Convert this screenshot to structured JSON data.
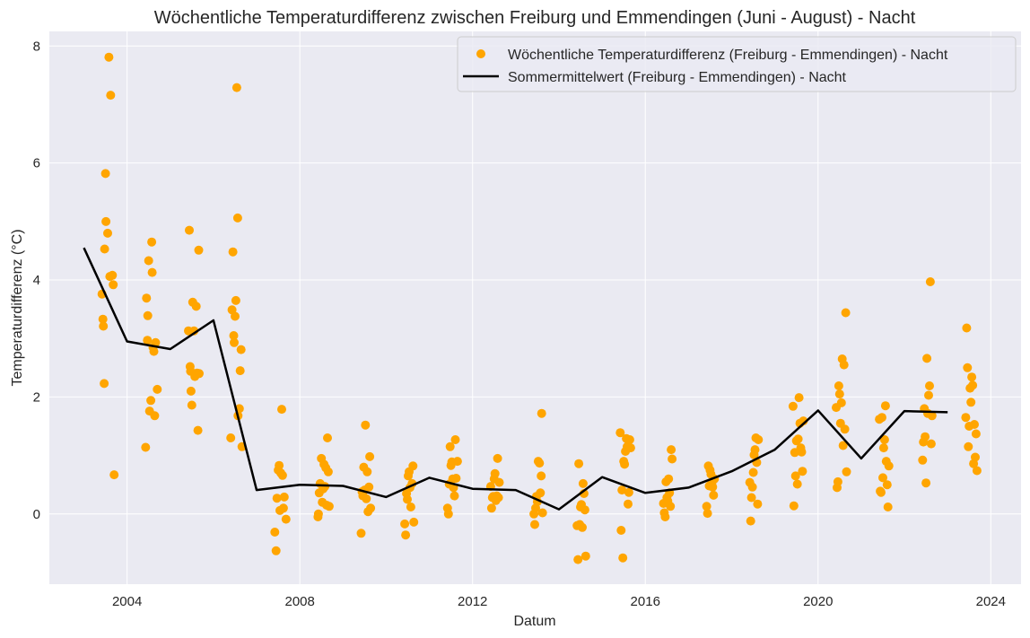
{
  "chart_data": {
    "type": "scatter",
    "title": "Wöchentliche Temperaturdifferenz zwischen Freiburg und Emmendingen (Juni - August) - Nacht",
    "xlabel": "Datum",
    "ylabel": "Temperaturdifferenz (°C)",
    "xlim": [
      2002.2,
      2024.7
    ],
    "ylim": [
      -1.2,
      8.25
    ],
    "x_ticks": [
      2004,
      2008,
      2012,
      2016,
      2020,
      2024
    ],
    "x_tick_labels": [
      "2004",
      "2008",
      "2012",
      "2016",
      "2020",
      "2024"
    ],
    "y_ticks": [
      0,
      2,
      4,
      6,
      8
    ],
    "y_tick_labels": [
      "0",
      "2",
      "4",
      "6",
      "8"
    ],
    "grid": true,
    "legend_position": "top-right",
    "colors": {
      "scatter": "#FFA500",
      "mean_line": "#000000",
      "plot_bg": "#EAEAF2",
      "grid": "#FFFFFF"
    },
    "series": [
      {
        "name": "Wöchentliche Temperaturdifferenz (Freiburg - Emmendingen) - Nacht",
        "kind": "scatter",
        "points": [
          [
            2003.42,
            3.76
          ],
          [
            2003.44,
            3.33
          ],
          [
            2003.45,
            3.21
          ],
          [
            2003.47,
            2.23
          ],
          [
            2003.48,
            4.53
          ],
          [
            2003.5,
            5.82
          ],
          [
            2003.51,
            5.0
          ],
          [
            2003.55,
            4.8
          ],
          [
            2003.58,
            7.81
          ],
          [
            2003.6,
            4.06
          ],
          [
            2003.62,
            7.16
          ],
          [
            2003.66,
            4.08
          ],
          [
            2003.68,
            3.92
          ],
          [
            2003.7,
            0.67
          ],
          [
            2004.43,
            1.14
          ],
          [
            2004.45,
            3.69
          ],
          [
            2004.47,
            2.97
          ],
          [
            2004.48,
            3.39
          ],
          [
            2004.5,
            4.33
          ],
          [
            2004.52,
            1.76
          ],
          [
            2004.55,
            1.94
          ],
          [
            2004.57,
            4.65
          ],
          [
            2004.58,
            4.13
          ],
          [
            2004.6,
            2.85
          ],
          [
            2004.62,
            2.78
          ],
          [
            2004.64,
            1.68
          ],
          [
            2004.66,
            2.93
          ],
          [
            2004.7,
            2.13
          ],
          [
            2005.42,
            3.13
          ],
          [
            2005.44,
            4.85
          ],
          [
            2005.46,
            2.52
          ],
          [
            2005.47,
            2.44
          ],
          [
            2005.48,
            2.1
          ],
          [
            2005.5,
            1.86
          ],
          [
            2005.52,
            3.62
          ],
          [
            2005.55,
            3.13
          ],
          [
            2005.57,
            2.35
          ],
          [
            2005.6,
            3.55
          ],
          [
            2005.62,
            2.41
          ],
          [
            2005.64,
            1.43
          ],
          [
            2005.66,
            4.51
          ],
          [
            2005.67,
            2.4
          ],
          [
            2006.4,
            1.3
          ],
          [
            2006.43,
            3.49
          ],
          [
            2006.45,
            4.48
          ],
          [
            2006.47,
            3.05
          ],
          [
            2006.48,
            2.93
          ],
          [
            2006.5,
            3.38
          ],
          [
            2006.52,
            3.65
          ],
          [
            2006.54,
            7.29
          ],
          [
            2006.56,
            5.06
          ],
          [
            2006.57,
            1.68
          ],
          [
            2006.6,
            1.8
          ],
          [
            2006.62,
            2.45
          ],
          [
            2006.64,
            2.81
          ],
          [
            2006.66,
            1.15
          ],
          [
            2007.42,
            -0.31
          ],
          [
            2007.45,
            -0.63
          ],
          [
            2007.47,
            0.27
          ],
          [
            2007.5,
            0.75
          ],
          [
            2007.52,
            0.83
          ],
          [
            2007.54,
            0.06
          ],
          [
            2007.56,
            0.7
          ],
          [
            2007.58,
            1.79
          ],
          [
            2007.6,
            0.66
          ],
          [
            2007.62,
            0.1
          ],
          [
            2007.64,
            0.29
          ],
          [
            2007.68,
            -0.09
          ],
          [
            2008.42,
            -0.05
          ],
          [
            2008.43,
            0.0
          ],
          [
            2008.45,
            0.36
          ],
          [
            2008.47,
            0.52
          ],
          [
            2008.5,
            0.95
          ],
          [
            2008.52,
            0.2
          ],
          [
            2008.54,
            0.43
          ],
          [
            2008.56,
            0.85
          ],
          [
            2008.58,
            0.47
          ],
          [
            2008.6,
            0.79
          ],
          [
            2008.62,
            0.15
          ],
          [
            2008.64,
            1.3
          ],
          [
            2008.66,
            0.72
          ],
          [
            2008.68,
            0.13
          ],
          [
            2009.42,
            -0.33
          ],
          [
            2009.44,
            0.38
          ],
          [
            2009.46,
            0.31
          ],
          [
            2009.48,
            0.8
          ],
          [
            2009.5,
            0.41
          ],
          [
            2009.52,
            1.52
          ],
          [
            2009.54,
            0.26
          ],
          [
            2009.56,
            0.72
          ],
          [
            2009.58,
            0.04
          ],
          [
            2009.6,
            0.46
          ],
          [
            2009.62,
            0.98
          ],
          [
            2009.64,
            0.1
          ],
          [
            2010.43,
            -0.17
          ],
          [
            2010.45,
            -0.36
          ],
          [
            2010.47,
            0.35
          ],
          [
            2010.49,
            0.25
          ],
          [
            2010.51,
            0.65
          ],
          [
            2010.53,
            0.72
          ],
          [
            2010.55,
            0.45
          ],
          [
            2010.57,
            0.12
          ],
          [
            2010.6,
            0.52
          ],
          [
            2010.62,
            0.82
          ],
          [
            2010.64,
            -0.14
          ],
          [
            2011.42,
            0.1
          ],
          [
            2011.44,
            0.0
          ],
          [
            2011.46,
            0.51
          ],
          [
            2011.48,
            1.15
          ],
          [
            2011.5,
            0.83
          ],
          [
            2011.52,
            0.89
          ],
          [
            2011.54,
            0.6
          ],
          [
            2011.56,
            0.45
          ],
          [
            2011.58,
            0.31
          ],
          [
            2011.6,
            1.27
          ],
          [
            2011.62,
            0.61
          ],
          [
            2011.65,
            0.9
          ],
          [
            2012.42,
            0.47
          ],
          [
            2012.44,
            0.1
          ],
          [
            2012.46,
            0.28
          ],
          [
            2012.48,
            0.3
          ],
          [
            2012.5,
            0.6
          ],
          [
            2012.52,
            0.69
          ],
          [
            2012.54,
            0.23
          ],
          [
            2012.56,
            0.31
          ],
          [
            2012.58,
            0.95
          ],
          [
            2012.6,
            0.28
          ],
          [
            2012.62,
            0.54
          ],
          [
            2013.42,
            0.0
          ],
          [
            2013.44,
            -0.18
          ],
          [
            2013.46,
            0.1
          ],
          [
            2013.48,
            0.3
          ],
          [
            2013.5,
            0.21
          ],
          [
            2013.52,
            0.9
          ],
          [
            2013.55,
            0.87
          ],
          [
            2013.57,
            0.36
          ],
          [
            2013.59,
            0.65
          ],
          [
            2013.6,
            1.72
          ],
          [
            2013.62,
            0.02
          ],
          [
            2014.42,
            -0.2
          ],
          [
            2014.44,
            -0.78
          ],
          [
            2014.46,
            0.86
          ],
          [
            2014.48,
            -0.18
          ],
          [
            2014.5,
            0.12
          ],
          [
            2014.52,
            0.16
          ],
          [
            2014.54,
            -0.23
          ],
          [
            2014.56,
            0.52
          ],
          [
            2014.58,
            0.35
          ],
          [
            2014.6,
            0.07
          ],
          [
            2014.62,
            -0.72
          ],
          [
            2015.42,
            1.39
          ],
          [
            2015.44,
            -0.28
          ],
          [
            2015.46,
            0.41
          ],
          [
            2015.48,
            -0.75
          ],
          [
            2015.5,
            0.9
          ],
          [
            2015.52,
            0.85
          ],
          [
            2015.54,
            1.07
          ],
          [
            2015.56,
            1.29
          ],
          [
            2015.58,
            1.15
          ],
          [
            2015.6,
            0.17
          ],
          [
            2015.62,
            0.37
          ],
          [
            2015.64,
            1.27
          ],
          [
            2015.66,
            1.13
          ],
          [
            2016.42,
            0.18
          ],
          [
            2016.44,
            0.02
          ],
          [
            2016.46,
            -0.05
          ],
          [
            2016.48,
            0.55
          ],
          [
            2016.5,
            0.28
          ],
          [
            2016.52,
            0.22
          ],
          [
            2016.54,
            0.6
          ],
          [
            2016.56,
            0.36
          ],
          [
            2016.58,
            0.13
          ],
          [
            2016.6,
            1.1
          ],
          [
            2016.62,
            0.94
          ],
          [
            2017.42,
            0.13
          ],
          [
            2017.44,
            0.01
          ],
          [
            2017.46,
            0.82
          ],
          [
            2017.48,
            0.48
          ],
          [
            2017.5,
            0.75
          ],
          [
            2017.52,
            0.68
          ],
          [
            2017.54,
            0.52
          ],
          [
            2017.56,
            0.46
          ],
          [
            2017.58,
            0.32
          ],
          [
            2017.6,
            0.6
          ],
          [
            2018.42,
            0.54
          ],
          [
            2018.44,
            -0.12
          ],
          [
            2018.46,
            0.28
          ],
          [
            2018.48,
            0.46
          ],
          [
            2018.5,
            0.71
          ],
          [
            2018.52,
            1.01
          ],
          [
            2018.54,
            1.1
          ],
          [
            2018.56,
            1.3
          ],
          [
            2018.58,
            0.88
          ],
          [
            2018.6,
            0.17
          ],
          [
            2018.62,
            1.27
          ],
          [
            2019.42,
            1.84
          ],
          [
            2019.44,
            0.14
          ],
          [
            2019.46,
            1.05
          ],
          [
            2019.48,
            0.65
          ],
          [
            2019.5,
            1.25
          ],
          [
            2019.52,
            0.51
          ],
          [
            2019.54,
            1.28
          ],
          [
            2019.56,
            1.99
          ],
          [
            2019.58,
            1.55
          ],
          [
            2019.6,
            1.13
          ],
          [
            2019.62,
            1.06
          ],
          [
            2019.64,
            0.73
          ],
          [
            2019.66,
            1.59
          ],
          [
            2020.42,
            1.82
          ],
          [
            2020.44,
            0.45
          ],
          [
            2020.46,
            0.55
          ],
          [
            2020.48,
            2.19
          ],
          [
            2020.5,
            2.05
          ],
          [
            2020.52,
            1.55
          ],
          [
            2020.54,
            1.9
          ],
          [
            2020.56,
            2.65
          ],
          [
            2020.58,
            1.17
          ],
          [
            2020.6,
            2.55
          ],
          [
            2020.62,
            1.45
          ],
          [
            2020.64,
            3.44
          ],
          [
            2020.66,
            0.72
          ],
          [
            2021.42,
            1.62
          ],
          [
            2021.44,
            0.39
          ],
          [
            2021.46,
            0.37
          ],
          [
            2021.48,
            1.65
          ],
          [
            2021.5,
            0.62
          ],
          [
            2021.52,
            1.13
          ],
          [
            2021.54,
            1.27
          ],
          [
            2021.56,
            1.85
          ],
          [
            2021.58,
            0.9
          ],
          [
            2021.6,
            0.5
          ],
          [
            2021.62,
            0.12
          ],
          [
            2021.64,
            0.82
          ],
          [
            2022.42,
            0.92
          ],
          [
            2022.44,
            1.23
          ],
          [
            2022.46,
            1.8
          ],
          [
            2022.48,
            1.32
          ],
          [
            2022.5,
            0.53
          ],
          [
            2022.52,
            2.66
          ],
          [
            2022.54,
            1.72
          ],
          [
            2022.56,
            2.03
          ],
          [
            2022.58,
            2.19
          ],
          [
            2022.6,
            3.97
          ],
          [
            2022.62,
            1.2
          ],
          [
            2022.64,
            1.68
          ],
          [
            2023.42,
            1.65
          ],
          [
            2023.44,
            3.18
          ],
          [
            2023.46,
            2.5
          ],
          [
            2023.48,
            1.15
          ],
          [
            2023.5,
            1.5
          ],
          [
            2023.52,
            2.15
          ],
          [
            2023.54,
            1.91
          ],
          [
            2023.56,
            2.34
          ],
          [
            2023.58,
            2.2
          ],
          [
            2023.6,
            0.86
          ],
          [
            2023.62,
            1.53
          ],
          [
            2023.64,
            0.97
          ],
          [
            2023.66,
            1.37
          ],
          [
            2023.68,
            0.74
          ]
        ]
      },
      {
        "name": "Sommermittelwert (Freiburg - Emmendingen) - Nacht",
        "kind": "line",
        "points": [
          [
            2003,
            4.55
          ],
          [
            2004,
            2.95
          ],
          [
            2005,
            2.82
          ],
          [
            2006,
            3.31
          ],
          [
            2007,
            0.41
          ],
          [
            2008,
            0.5
          ],
          [
            2009,
            0.48
          ],
          [
            2010,
            0.29
          ],
          [
            2011,
            0.62
          ],
          [
            2012,
            0.43
          ],
          [
            2013,
            0.41
          ],
          [
            2014,
            0.08
          ],
          [
            2015,
            0.63
          ],
          [
            2016,
            0.36
          ],
          [
            2017,
            0.45
          ],
          [
            2018,
            0.73
          ],
          [
            2019,
            1.1
          ],
          [
            2020,
            1.77
          ],
          [
            2021,
            0.95
          ],
          [
            2022,
            1.76
          ],
          [
            2023,
            1.74
          ]
        ]
      }
    ]
  }
}
